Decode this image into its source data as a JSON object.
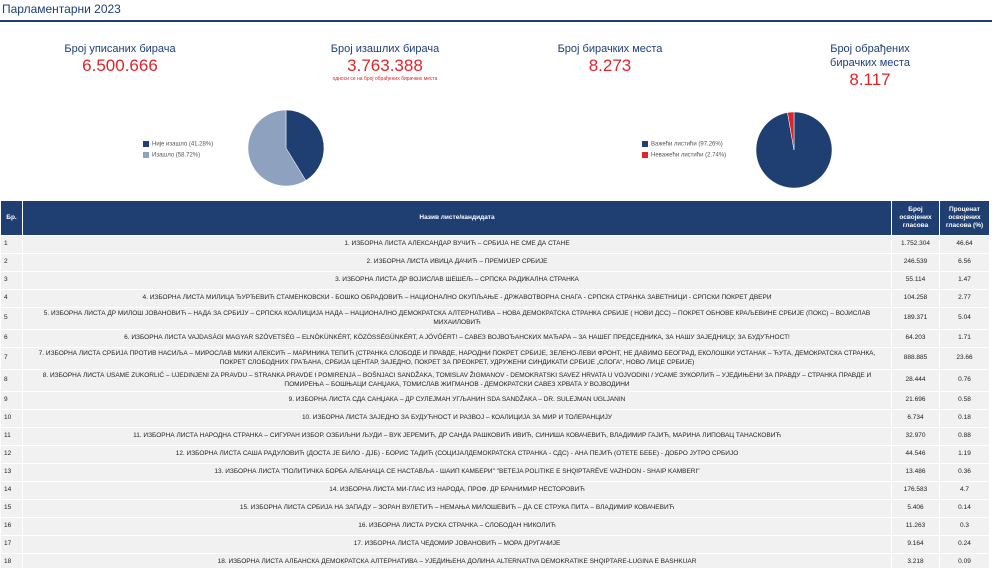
{
  "header": {
    "title": "Парламентарни 2023"
  },
  "stats": [
    {
      "label": "Број уписаних бирача",
      "value": "6.500.666"
    },
    {
      "label": "Број изашлих бирача",
      "value": "3.763.388",
      "note": "односи се на број обрађених бирачких места"
    },
    {
      "label": "Број бирачких места",
      "value": "8.273"
    },
    {
      "label": "Број обрађених бирачких места",
      "value": "8.117"
    }
  ],
  "pies": [
    {
      "slices": [
        {
          "label": "Није изашло (41.28%)",
          "value": 41.28,
          "color": "#1f3f73"
        },
        {
          "label": "Изашло (58.72%)",
          "value": 58.72,
          "color": "#8ea2bf"
        }
      ]
    },
    {
      "slices": [
        {
          "label": "Важећи листићи (97.26%)",
          "value": 97.26,
          "color": "#1f3f73"
        },
        {
          "label": "Неважећи листићи (2.74%)",
          "value": 2.74,
          "color": "#e0242a"
        }
      ]
    }
  ],
  "table": {
    "columns": [
      "Бр.",
      "Назив листе/кандидата",
      "Број освојених гласова",
      "Проценат освојених гласова (%)"
    ],
    "rows": [
      [
        "1",
        "1. ИЗБОРНА ЛИСТА АЛЕКСАНДАР ВУЧИЋ – СРБИЈА НЕ СМЕ ДА СТАНЕ",
        "1.752.304",
        "46.64"
      ],
      [
        "2",
        "2. ИЗБОРНА ЛИСТА ИВИЦА ДАЧИЋ – ПРЕМИЈЕР СРБИЈЕ",
        "246.539",
        "6.56"
      ],
      [
        "3",
        "3. ИЗБОРНА ЛИСТА ДР ВОЈИСЛАВ ШЕШЕЉ – СРПСКА РАДИКАЛНА СТРАНКА",
        "55.114",
        "1.47"
      ],
      [
        "4",
        "4. ИЗБОРНА ЛИСТА МИЛИЦА ЂУРЂЕВИЋ СТАМЕНКОВСКИ - БОШКО ОБРАДОВИЋ – НАЦИОНАЛНО ОКУПЉАЊЕ - ДРЖАВОТВОРНА СНАГА - СРПСКА СТРАНКА ЗАВЕТНИЦИ - СРПСКИ ПОКРЕТ ДВЕРИ",
        "104.258",
        "2.77"
      ],
      [
        "5",
        "5. ИЗБОРНА ЛИСТА ДР МИЛОШ ЈОВАНОВИЋ – НАДА ЗА СРБИЈУ – СРПСКА КОАЛИЦИЈА НАДА – НАЦИОНАЛНО ДЕМОКРАТСКА АЛТЕРНАТИВА – НОВА ДЕМОКРАТСКА СТРАНКА СРБИЈЕ ( НОВИ ДСС) – ПОКРЕТ ОБНОВЕ КРАЉЕВИНЕ СРБИЈЕ (ПОКС) – ВОЈИСЛАВ МИХАИЛОВИЋ",
        "189.371",
        "5.04"
      ],
      [
        "6",
        "6. ИЗБОРНА ЛИСТА VAJDASÁGI MAGYAR SZÖVETSÉG – ELNÖKÜNKÉRT, KÖZÖSSÉGÜNKÉRT, A JÖVŐÉRT! – САВЕЗ ВОЈВОЂАНСКИХ МАЂАРА – ЗА НАШЕГ ПРЕДСЕДНИКА, ЗА НАШУ ЗАЈЕДНИЦУ, ЗА БУДУЋНОСТ!",
        "64.203",
        "1.71"
      ],
      [
        "7",
        "7. ИЗБОРНА ЛИСТА СРБИЈА ПРОТИВ НАСИЉА – МИРОСЛАВ МИКИ АЛЕКСИЋ – МАРИНИКА ТЕПИЋ (СТРАНКА СЛОБОДЕ И ПРАВДЕ, НАРОДНИ ПОКРЕТ СРБИЈЕ, ЗЕЛЕНО-ЛЕВИ ФРОНТ, НЕ ДАВИМО БЕОГРАД, ЕКОЛОШКИ УСТАНАК – ЋУТА, ДЕМОКРАТСКА СТРАНКА, ПОКРЕТ СЛОБОДНИХ ГРАЂАНА, СРБИЈА ЦЕНТАР, ЗАЈЕДНО, ПОКРЕТ ЗА ПРЕОКРЕТ, УДРУЖЕНИ СИНДИКАТИ СРБИЈЕ „СЛОГА“, НОВО ЛИЦЕ СРБИЈЕ)",
        "888.885",
        "23.66"
      ],
      [
        "8",
        "8. ИЗБОРНА ЛИСТА USAME ZUKORLIĆ – UJEDINJENI ZA PRAVDU – STRANKA PRAVDE I POMIRENJA – BOŠNJACI SANDŽAKA, TOMISLAV ŽIGMANOV - DEMOKRATSKI SAVEZ HRVATA U VOJVODINI / УСАМЕ ЗУКОРЛИЋ – УЈЕДИЊЕНИ ЗА ПРАВДУ – СТРАНКА ПРАВДЕ И ПОМИРЕЊА – БОШЊАЦИ САНЏАКА, ТОМИСЛАВ ЖИГМАНОВ - ДЕМОКРАТСКИ САВЕЗ ХРВАТА У ВОЈВОДИНИ",
        "28.444",
        "0.76"
      ],
      [
        "9",
        "9. ИЗБОРНА ЛИСТА СДА САНЏАКА – ДР СУЛЕЈМАН УГЉАНИН SDA SANDŽAKA – DR. SULEJMAN UGLJANIN",
        "21.696",
        "0.58"
      ],
      [
        "10",
        "10. ИЗБОРНА ЛИСТА ЗАЈЕДНО ЗА БУДУЋНОСТ И РАЗВОЈ – КОАЛИЦИЈА ЗА МИР И ТОЛЕРАНЦИЈУ",
        "6.734",
        "0.18"
      ],
      [
        "11",
        "11. ИЗБОРНА ЛИСТА НАРОДНА СТРАНКА – СИГУРАН ИЗБОР. ОЗБИЉНИ ЉУДИ – ВУК ЈЕРЕМИЋ, ДР САНДА РАШКОВИЋ ИВИЋ, СИНИША КОВАЧЕВИЋ, ВЛАДИМИР ГАЈИЋ, МАРИНА ЛИПОВАЦ ТАНАСКОВИЋ",
        "32.970",
        "0.88"
      ],
      [
        "12",
        "12. ИЗБОРНА ЛИСТА САША РАДУЛОВИЋ (ДОСТА ЈЕ БИЛО - ДЈБ) - БОРИС ТАДИЋ (СОЦИЈАЛДЕМОКРАТСКА СТРАНКА - СДС) - АНА ПЕЈИЋ (ОТЕТЕ БЕБЕ) - ДОБРО ЈУТРО СРБИЈО",
        "44.546",
        "1.19"
      ],
      [
        "13",
        "13. ИЗБОРНА ЛИСТА \"ПОЛИТИЧКА БОРБА АЛБАНАЦА СЕ НАСТАВЉА - ШАИП КАМБЕРИ\" \"BETEJA POLITIKE E SHQIPTARËVE VAZHDON - SHAIP KAMBERI\"",
        "13.486",
        "0.36"
      ],
      [
        "14",
        "14. ИЗБОРНА ЛИСТА МИ-ГЛАС ИЗ НАРОДА, ПРОФ. ДР БРАНИМИР НЕСТОРОВИЋ",
        "176.583",
        "4.7"
      ],
      [
        "15",
        "15. ИЗБОРНА ЛИСТА СРБИЈА НА ЗАПАДУ – ЗОРАН ВУЛЕТИЋ – НЕМАЊА МИЛОШЕВИЋ – ДА СЕ СТРУКА ПИТА – ВЛАДИМИР КОВАЧЕВИЋ",
        "5.406",
        "0.14"
      ],
      [
        "16",
        "16. ИЗБОРНА ЛИСТА РУСКА СТРАНКА – СЛОБОДАН НИКОЛИЋ",
        "11.263",
        "0.3"
      ],
      [
        "17",
        "17. ИЗБОРНА ЛИСТА ЧЕДОМИР ЈОВАНОВИЋ – МОРА ДРУГАЧИЈЕ",
        "9.164",
        "0.24"
      ],
      [
        "18",
        "18. ИЗБОРНА ЛИСТА АЛБАНСКА ДЕМОКРАТСКА АЛТЕРНАТИВА – УЈЕДИЊЕНА ДОЛИНА ALTERNATIVA DEMOKRATIKE SHQIPTARE-LUGINA E BASHKUAR",
        "3.218",
        "0.09"
      ]
    ]
  }
}
